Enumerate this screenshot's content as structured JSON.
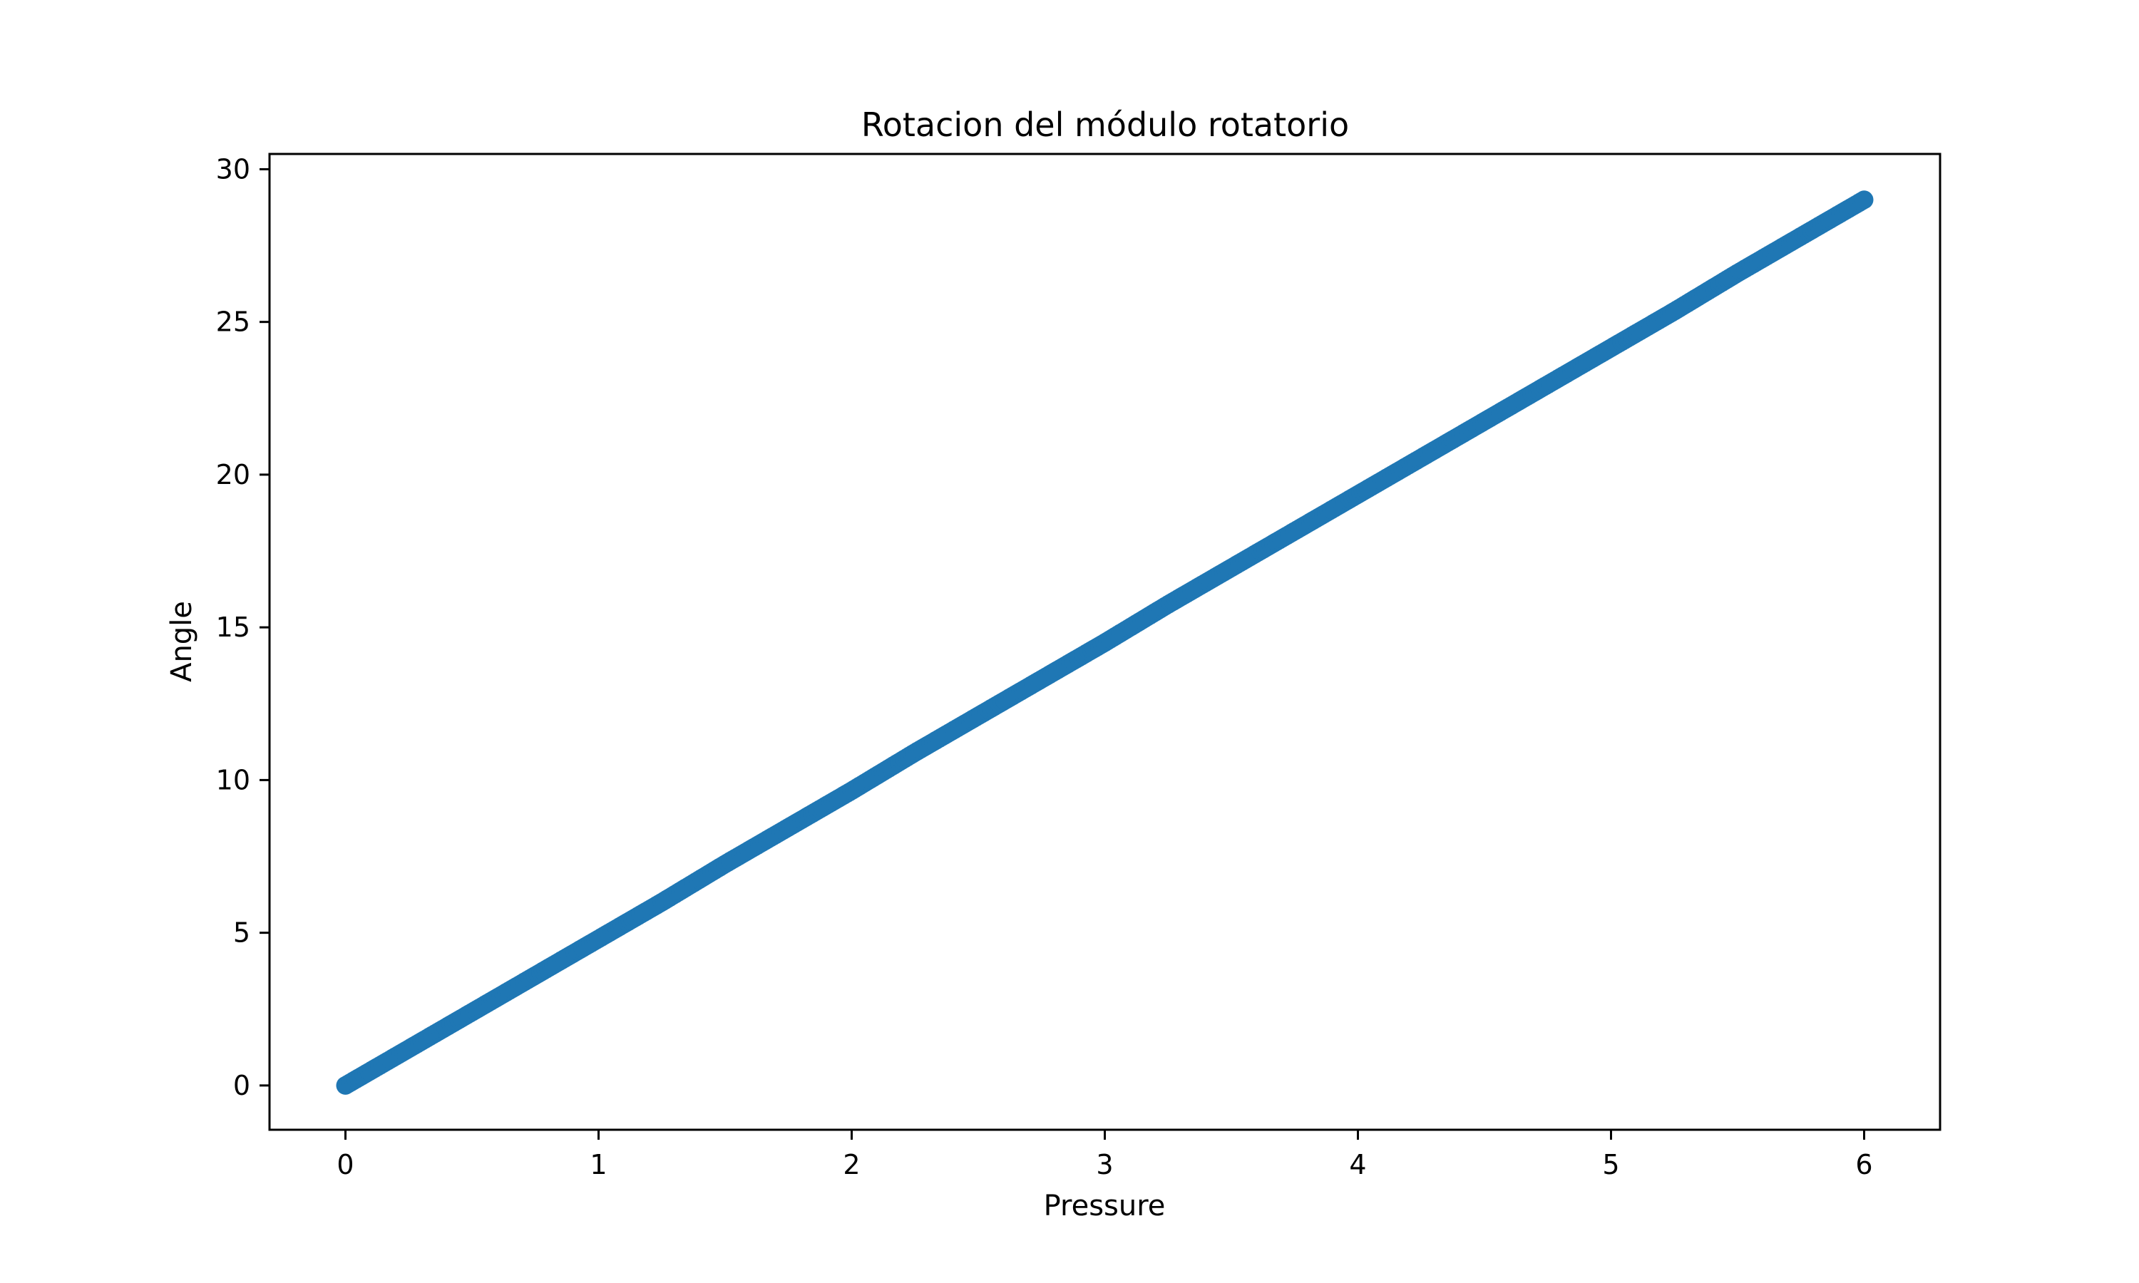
{
  "chart_data": {
    "type": "scatter",
    "title": "Rotacion del módulo rotatorio",
    "xlabel": "Pressure",
    "ylabel": "Angle",
    "xlim": [
      -0.3,
      6.3
    ],
    "ylim": [
      -1.45,
      30.5
    ],
    "xticks": [
      0,
      1,
      2,
      3,
      4,
      5,
      6
    ],
    "xtick_labels": [
      "0",
      "1",
      "2",
      "3",
      "4",
      "5",
      "6"
    ],
    "yticks": [
      0,
      5,
      10,
      15,
      20,
      25,
      30
    ],
    "ytick_labels": [
      "0",
      "5",
      "10",
      "15",
      "20",
      "25",
      "30"
    ],
    "grid": false,
    "legend": "none",
    "marker_color": "#1f77b4",
    "series": [
      {
        "x": [
          0,
          0.25,
          0.5,
          0.75,
          1,
          1.25,
          1.5,
          1.75,
          2,
          2.25,
          2.5,
          2.75,
          3,
          3.25,
          3.5,
          3.75,
          4,
          4.25,
          4.5,
          4.75,
          5,
          5.25,
          5.5,
          5.75,
          6
        ],
        "y": [
          0,
          1.2,
          2.4,
          3.6,
          4.8,
          6.0,
          7.25,
          8.45,
          9.65,
          10.9,
          12.1,
          13.3,
          14.5,
          15.75,
          16.95,
          18.15,
          19.35,
          20.55,
          21.75,
          22.95,
          24.15,
          25.35,
          26.6,
          27.8,
          29.0
        ]
      }
    ]
  }
}
